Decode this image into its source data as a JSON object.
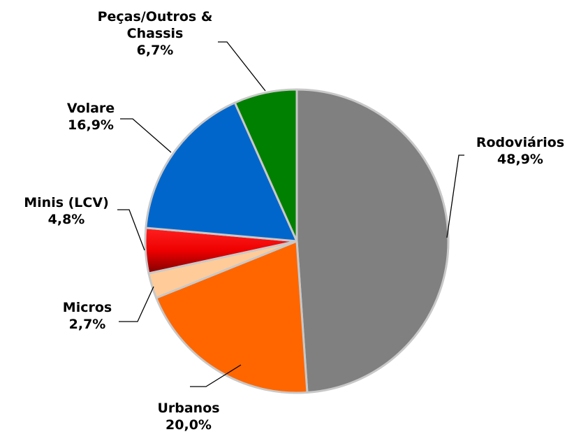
{
  "chart_data": {
    "type": "pie",
    "categories": [
      "Rodoviários",
      "Urbanos",
      "Micros",
      "Minis (LCV)",
      "Volare",
      "Peças/Outros & Chassis"
    ],
    "values": [
      48.9,
      20.0,
      2.7,
      4.8,
      16.9,
      6.7
    ],
    "value_labels": [
      "48,9%",
      "20,0%",
      "2,7%",
      "4,8%",
      "16,9%",
      "6,7%"
    ],
    "colors": [
      "#808080",
      "#ff6600",
      "#ffcc99",
      "#ee0000",
      "#0066cc",
      "#008000"
    ]
  }
}
